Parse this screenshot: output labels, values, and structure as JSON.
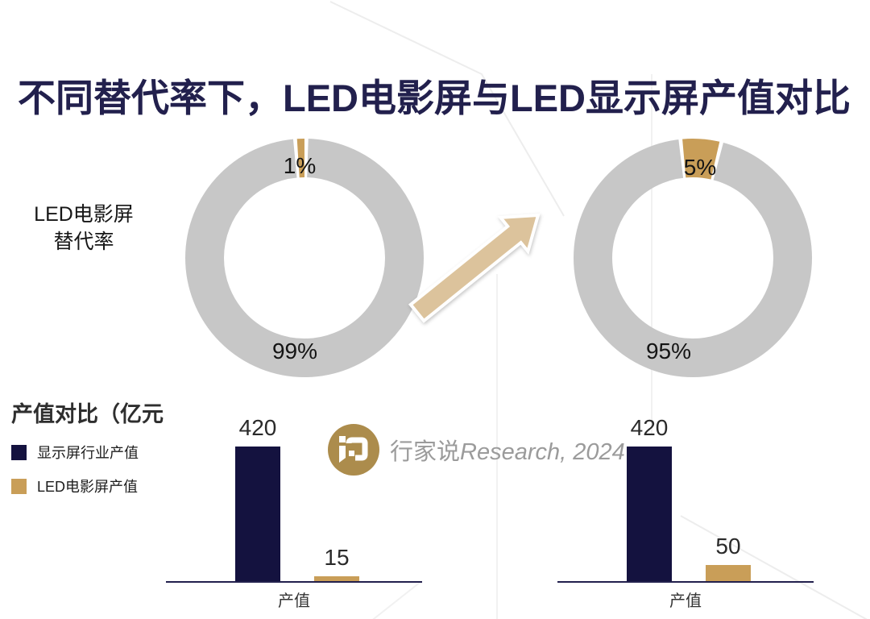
{
  "title": "不同替代率下，LED电影屏与LED显示屏产值对比",
  "colors": {
    "title_navy": "#22204D",
    "bar_navy": "#14123F",
    "tan": "#C99E58",
    "ring_gray": "#C7C7C7",
    "arrow_tan": "#DCC39C",
    "logo_gold": "#AC8C4C",
    "source_text_gray": "#9B9B9B"
  },
  "donut_section": {
    "side_label_line1": "LED电影屏",
    "side_label_line2": "替代率"
  },
  "bottom_section": {
    "header": "产值对比（亿元",
    "legend": [
      {
        "label": "显示屏行业产值",
        "color": "#14123F"
      },
      {
        "label": "LED电影屏产值",
        "color": "#C99E58"
      }
    ],
    "source_cn": "行家说",
    "source_en": "Research, 2024"
  },
  "chart_data": [
    {
      "type": "pie",
      "values": [
        1,
        99
      ],
      "display": [
        "1%",
        "99%"
      ],
      "colors": [
        "#C99E58",
        "#C7C7C7"
      ],
      "slice_center_deg": -1.8,
      "donut": true
    },
    {
      "type": "pie",
      "values": [
        5,
        95
      ],
      "display": [
        "5%",
        "95%"
      ],
      "colors": [
        "#C99E58",
        "#C7C7C7"
      ],
      "slice_center_deg": 4,
      "donut": true
    },
    {
      "type": "bar",
      "categories": [
        "产值"
      ],
      "unit": "亿元",
      "ylim": [
        0,
        440
      ],
      "series": [
        {
          "name": "显示屏行业产值",
          "value": 420,
          "color": "#14123F"
        },
        {
          "name": "LED电影屏产值",
          "value": 15,
          "color": "#C99E58"
        }
      ]
    },
    {
      "type": "bar",
      "categories": [
        "产值"
      ],
      "unit": "亿元",
      "ylim": [
        0,
        440
      ],
      "series": [
        {
          "name": "显示屏行业产值",
          "value": 420,
          "color": "#14123F"
        },
        {
          "name": "LED电影屏产值",
          "value": 50,
          "color": "#C99E58"
        }
      ]
    }
  ]
}
